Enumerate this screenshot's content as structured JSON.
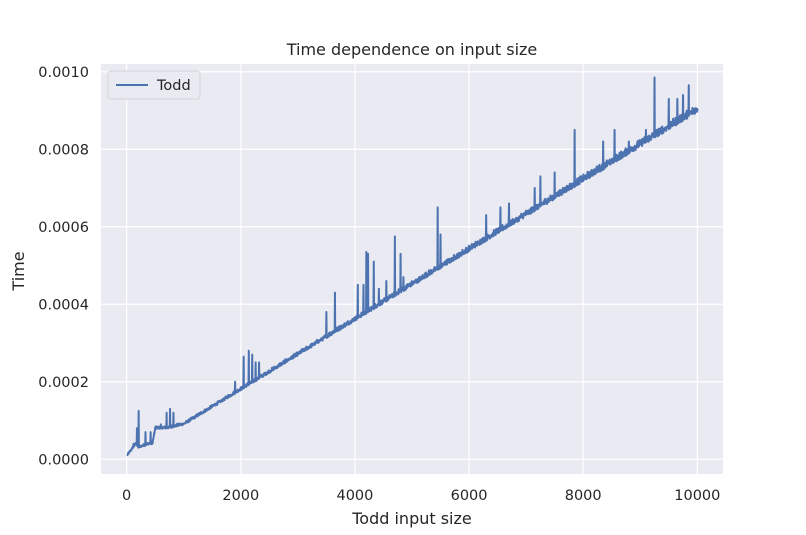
{
  "chart_data": {
    "type": "line",
    "title": "Time dependence on input size",
    "xlabel": "Todd input size",
    "ylabel": "Time",
    "xlim": [
      -450,
      10450
    ],
    "ylim": [
      -3.8e-05,
      0.00102
    ],
    "xticks": [
      0,
      2000,
      4000,
      6000,
      8000,
      10000
    ],
    "xtick_labels": [
      "0",
      "2000",
      "4000",
      "6000",
      "8000",
      "10000"
    ],
    "yticks": [
      0,
      0.0002,
      0.0004,
      0.0006,
      0.0008,
      0.001
    ],
    "ytick_labels": [
      "0.0000",
      "0.0002",
      "0.0004",
      "0.0006",
      "0.0008",
      "0.0010"
    ],
    "grid": true,
    "legend": {
      "position": "top-left",
      "entries": [
        "Todd"
      ]
    },
    "series": [
      {
        "name": "Todd",
        "color": "#4c72b0",
        "x_start": 10,
        "x_end": 10000,
        "y_start": 1e-05,
        "y_end": 0.0009,
        "baseline": [
          [
            10,
            1e-05
          ],
          [
            160,
            4e-05
          ],
          [
            200,
            3e-05
          ],
          [
            400,
            4e-05
          ],
          [
            450,
            4e-05
          ],
          [
            500,
            8e-05
          ],
          [
            650,
            8e-05
          ],
          [
            700,
            8e-05
          ],
          [
            1000,
            9e-05
          ],
          [
            2000,
            0.00018
          ],
          [
            3000,
            0.00027
          ],
          [
            4000,
            0.00036
          ],
          [
            5000,
            0.00045
          ],
          [
            6000,
            0.00054
          ],
          [
            7000,
            0.00063
          ],
          [
            8000,
            0.00072
          ],
          [
            9000,
            0.00081
          ],
          [
            10000,
            0.0009
          ]
        ],
        "spikes": [
          [
            120,
            4e-05
          ],
          [
            180,
            8e-05
          ],
          [
            210,
            0.000125
          ],
          [
            330,
            7e-05
          ],
          [
            420,
            7e-05
          ],
          [
            600,
            9e-05
          ],
          [
            700,
            0.00012
          ],
          [
            760,
            0.00013
          ],
          [
            820,
            0.00012
          ],
          [
            1900,
            0.0002
          ],
          [
            2050,
            0.000265
          ],
          [
            2140,
            0.00028
          ],
          [
            2200,
            0.00027
          ],
          [
            2260,
            0.00025
          ],
          [
            2320,
            0.00025
          ],
          [
            3500,
            0.00038
          ],
          [
            3650,
            0.00043
          ],
          [
            4050,
            0.00045
          ],
          [
            4150,
            0.00045
          ],
          [
            4200,
            0.000535
          ],
          [
            4230,
            0.00053
          ],
          [
            4330,
            0.00051
          ],
          [
            4420,
            0.00044
          ],
          [
            4550,
            0.00046
          ],
          [
            4700,
            0.000575
          ],
          [
            4800,
            0.00053
          ],
          [
            4850,
            0.00047
          ],
          [
            5450,
            0.00065
          ],
          [
            5500,
            0.00058
          ],
          [
            6300,
            0.00063
          ],
          [
            6550,
            0.00065
          ],
          [
            6700,
            0.00066
          ],
          [
            7150,
            0.0007
          ],
          [
            7250,
            0.00073
          ],
          [
            7500,
            0.00074
          ],
          [
            7850,
            0.00085
          ],
          [
            8350,
            0.00082
          ],
          [
            8550,
            0.00085
          ],
          [
            8800,
            0.00082
          ],
          [
            9100,
            0.00085
          ],
          [
            9250,
            0.000985
          ],
          [
            9500,
            0.00093
          ],
          [
            9650,
            0.00093
          ],
          [
            9750,
            0.00094
          ],
          [
            9850,
            0.000965
          ]
        ]
      }
    ]
  }
}
